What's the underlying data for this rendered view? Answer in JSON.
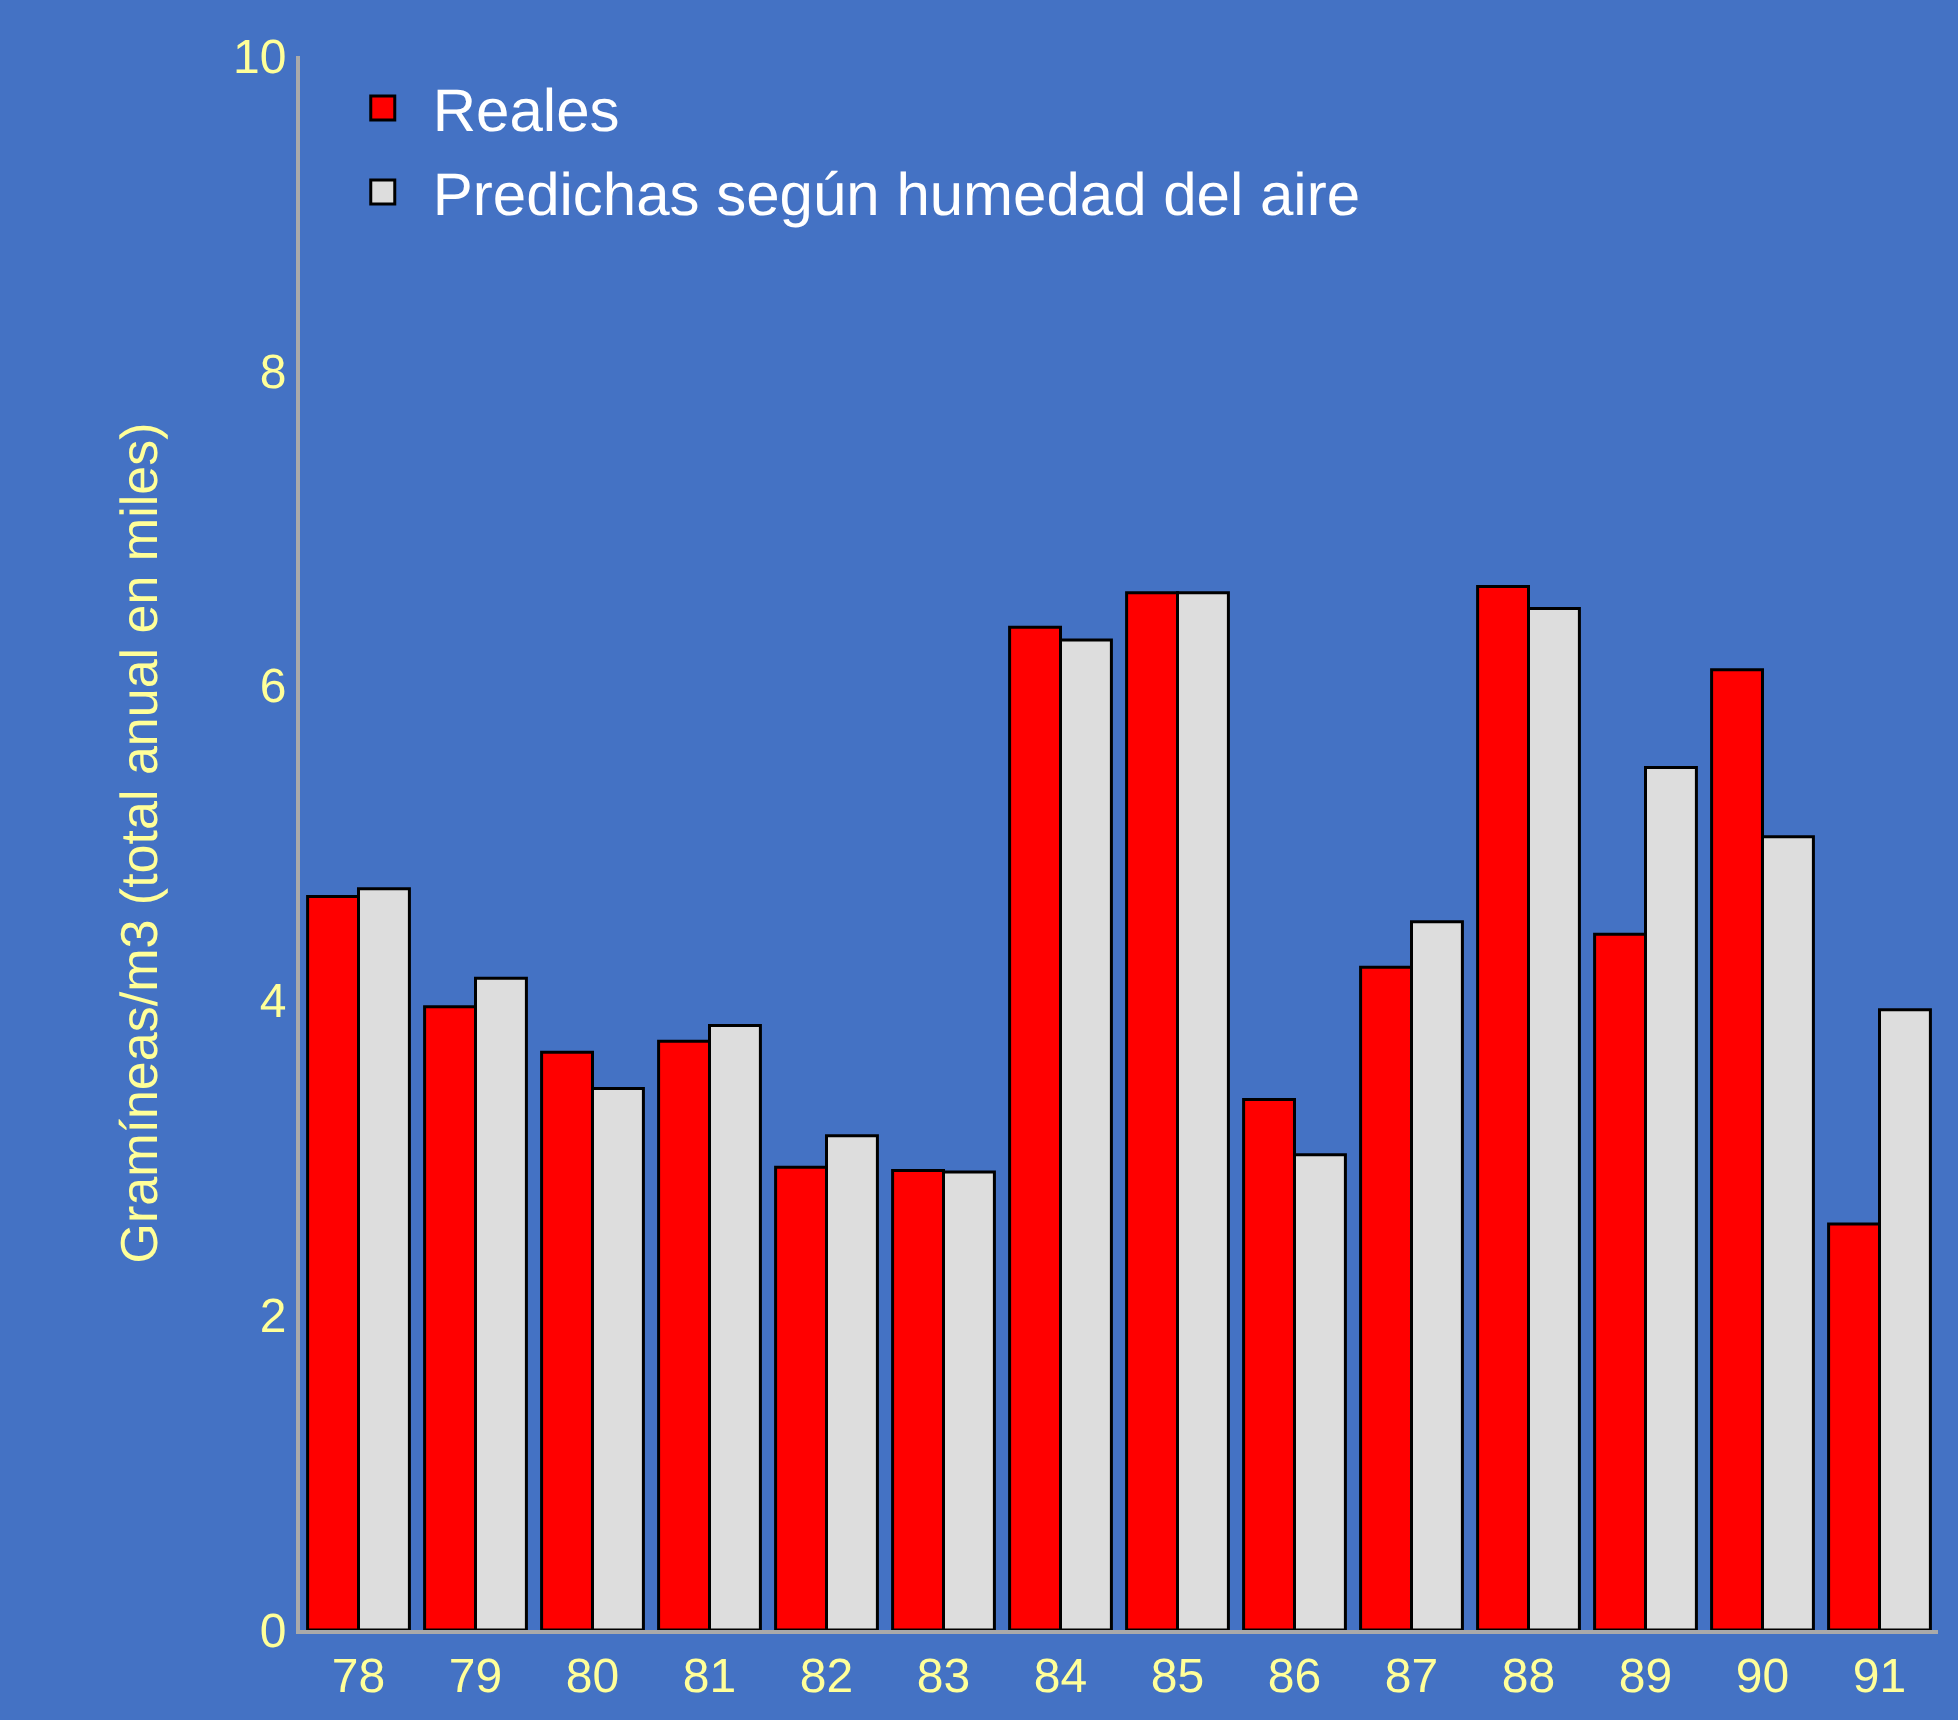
{
  "chart_data": {
    "type": "bar",
    "ylabel": "Gramíneas/m3 (total anual en miles)",
    "categories": [
      "78",
      "79",
      "80",
      "81",
      "82",
      "83",
      "84",
      "85",
      "86",
      "87",
      "88",
      "89",
      "90",
      "91"
    ],
    "series": [
      {
        "name": "Reales",
        "color": "#ff0000",
        "values": [
          4.66,
          3.96,
          3.67,
          3.74,
          2.94,
          2.92,
          6.37,
          6.59,
          3.37,
          4.21,
          6.63,
          4.42,
          6.1,
          2.58
        ]
      },
      {
        "name": "Predichas según humedad del aire",
        "color": "#dddddd",
        "values": [
          4.71,
          4.14,
          3.44,
          3.84,
          3.14,
          2.91,
          6.29,
          6.59,
          3.02,
          4.5,
          6.49,
          5.48,
          5.04,
          3.94
        ]
      }
    ],
    "ylim": [
      0,
      10
    ],
    "yticks": [
      0,
      2,
      4,
      6,
      8,
      10
    ],
    "grid": false,
    "legend": "top left"
  }
}
